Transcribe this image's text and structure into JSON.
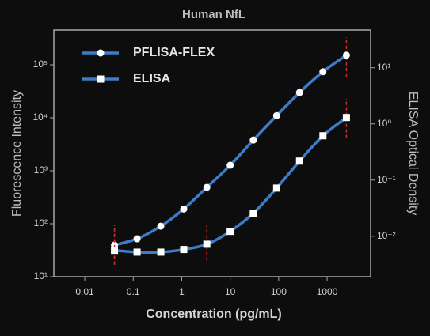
{
  "chart_data": {
    "type": "line",
    "title": "Human NfL",
    "xlabel": "Concentration (pg/mL)",
    "ylabel": "Fluorescence Intensity",
    "y2label": "ELISA Optical Density",
    "xscale": "log",
    "yscale": "log",
    "y2scale": "log",
    "x": [
      0.041,
      0.12,
      0.37,
      1.1,
      3.3,
      10,
      30,
      91,
      270,
      820,
      2500
    ],
    "xlim": [
      0.0023,
      7900
    ],
    "xticks": [
      0.01,
      0.1,
      1,
      10,
      100,
      1000
    ],
    "ylim": [
      10,
      454000
    ],
    "yticks": [
      {
        "value": 10,
        "label": "10¹"
      },
      {
        "value": 100,
        "label": "10²"
      },
      {
        "value": 1000,
        "label": "10³"
      },
      {
        "value": 10000,
        "label": "10⁴"
      },
      {
        "value": 100000,
        "label": "10⁵"
      }
    ],
    "y2lim": [
      0.0019,
      47
    ],
    "y2ticks": [
      {
        "value": 0.01,
        "label": "10⁻²"
      },
      {
        "value": 0.1,
        "label": "10⁻¹"
      },
      {
        "value": 1,
        "label": "10⁰"
      },
      {
        "value": 10,
        "label": "10¹"
      }
    ],
    "legend": "upper left",
    "error_color": "#d42a2a",
    "series": [
      {
        "name": "PFLISA-FLEX",
        "color": "#3d7cc9",
        "marker": "circle",
        "values": [
          39.5,
          52,
          90,
          190,
          486,
          1270,
          3800,
          11000,
          30000,
          74000,
          152000
        ],
        "error_ranges": [
          [
            17,
            93
          ],
          null,
          null,
          null,
          null,
          null,
          null,
          null,
          null,
          null,
          [
            60000,
            330000
          ]
        ]
      },
      {
        "name": "ELISA",
        "color": "#3d7cc9",
        "marker": "square",
        "axis": "y2",
        "values": [
          0.0056,
          0.0052,
          0.0052,
          0.0058,
          0.0072,
          0.0122,
          0.0257,
          0.072,
          0.218,
          0.615,
          1.3
        ],
        "error_ranges": [
          [
            0.0031,
            0.0157
          ],
          null,
          null,
          null,
          [
            0.0037,
            0.0157
          ],
          null,
          null,
          null,
          null,
          null,
          [
            0.56,
            2.8
          ]
        ]
      }
    ]
  }
}
